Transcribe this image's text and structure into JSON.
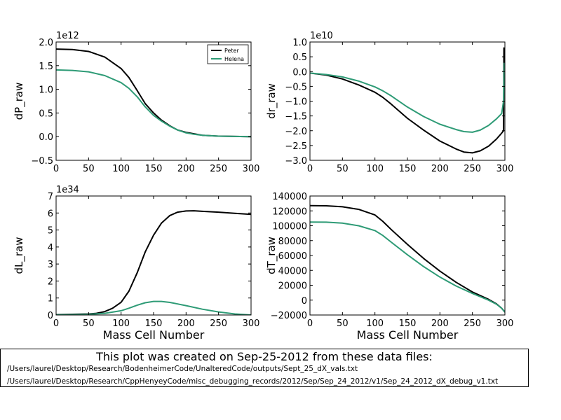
{
  "chart_data": [
    {
      "type": "line",
      "ylabel": "dP_raw",
      "xlabel": "",
      "exponent_label": "1e12",
      "xlim": [
        0,
        300
      ],
      "ylim": [
        -0.5,
        2.0
      ],
      "xticks": [
        0,
        50,
        100,
        150,
        200,
        250,
        300
      ],
      "xtick_labels": [
        "0",
        "50",
        "100",
        "150",
        "200",
        "250",
        "300"
      ],
      "yticks": [
        -0.5,
        0.0,
        0.5,
        1.0,
        1.5,
        2.0
      ],
      "ytick_labels": [
        "−0.5",
        "0.0",
        "0.5",
        "1.0",
        "1.5",
        "2.0"
      ],
      "legend": {
        "placement": "top-right",
        "entries": [
          "Peter",
          "Helena"
        ]
      },
      "series": [
        {
          "name": "Peter",
          "color": "#000000",
          "x": [
            0,
            25,
            50,
            75,
            100,
            112,
            125,
            137,
            150,
            162,
            175,
            187,
            200,
            212,
            225,
            250,
            275,
            300
          ],
          "y": [
            1.85,
            1.84,
            1.8,
            1.68,
            1.44,
            1.25,
            0.97,
            0.7,
            0.5,
            0.35,
            0.23,
            0.14,
            0.09,
            0.06,
            0.03,
            0.01,
            0.005,
            0.0
          ]
        },
        {
          "name": "Helena",
          "color": "#2e9b76",
          "x": [
            0,
            25,
            50,
            75,
            100,
            112,
            125,
            137,
            150,
            162,
            175,
            187,
            200,
            212,
            225,
            250,
            275,
            300
          ],
          "y": [
            1.41,
            1.4,
            1.37,
            1.29,
            1.14,
            1.02,
            0.84,
            0.63,
            0.45,
            0.33,
            0.22,
            0.14,
            0.08,
            0.05,
            0.03,
            0.01,
            0.004,
            0.0
          ]
        }
      ]
    },
    {
      "type": "line",
      "ylabel": "dr_raw",
      "xlabel": "",
      "exponent_label": "1e10",
      "xlim": [
        0,
        300
      ],
      "ylim": [
        -3.0,
        1.0
      ],
      "xticks": [
        0,
        50,
        100,
        150,
        200,
        250,
        300
      ],
      "xtick_labels": [
        "0",
        "50",
        "100",
        "150",
        "200",
        "250",
        "300"
      ],
      "yticks": [
        -3.0,
        -2.5,
        -2.0,
        -1.5,
        -1.0,
        -0.5,
        0.0,
        0.5,
        1.0
      ],
      "ytick_labels": [
        "−3.0",
        "−2.5",
        "−2.0",
        "−1.5",
        "−1.0",
        "−0.5",
        "0.0",
        "0.5",
        "1.0"
      ],
      "series": [
        {
          "name": "Peter",
          "color": "#000000",
          "x": [
            0,
            25,
            50,
            75,
            100,
            112,
            125,
            150,
            175,
            200,
            225,
            237,
            250,
            262,
            275,
            287,
            295,
            298,
            298.5,
            299
          ],
          "y": [
            -0.05,
            -0.12,
            -0.25,
            -0.45,
            -0.7,
            -0.87,
            -1.1,
            -1.58,
            -1.98,
            -2.35,
            -2.62,
            -2.72,
            -2.75,
            -2.68,
            -2.52,
            -2.28,
            -2.08,
            -2.0,
            0.8,
            0.5
          ]
        },
        {
          "name": "Helena",
          "color": "#2e9b76",
          "x": [
            0,
            25,
            50,
            75,
            100,
            112,
            125,
            150,
            175,
            200,
            225,
            237,
            250,
            262,
            275,
            287,
            295,
            298,
            299
          ],
          "y": [
            -0.05,
            -0.1,
            -0.18,
            -0.32,
            -0.52,
            -0.65,
            -0.82,
            -1.2,
            -1.52,
            -1.78,
            -1.96,
            -2.03,
            -2.05,
            -1.98,
            -1.82,
            -1.6,
            -1.42,
            -1.0,
            0.3
          ]
        }
      ]
    },
    {
      "type": "line",
      "ylabel": "dL_raw",
      "xlabel": "Mass Cell Number",
      "exponent_label": "1e34",
      "xlim": [
        0,
        300
      ],
      "ylim": [
        0,
        7
      ],
      "xticks": [
        0,
        50,
        100,
        150,
        200,
        250,
        300
      ],
      "xtick_labels": [
        "0",
        "50",
        "100",
        "150",
        "200",
        "250",
        "300"
      ],
      "yticks": [
        0,
        1,
        2,
        3,
        4,
        5,
        6,
        7
      ],
      "ytick_labels": [
        "0",
        "1",
        "2",
        "3",
        "4",
        "5",
        "6",
        "7"
      ],
      "series": [
        {
          "name": "Peter",
          "color": "#000000",
          "x": [
            0,
            25,
            50,
            62,
            75,
            87,
            100,
            112,
            125,
            137,
            150,
            162,
            175,
            187,
            200,
            212,
            225,
            250,
            275,
            300
          ],
          "y": [
            0.02,
            0.04,
            0.06,
            0.1,
            0.2,
            0.4,
            0.75,
            1.4,
            2.5,
            3.7,
            4.7,
            5.4,
            5.85,
            6.05,
            6.12,
            6.13,
            6.1,
            6.05,
            5.98,
            5.92
          ]
        },
        {
          "name": "Helena",
          "color": "#2e9b76",
          "x": [
            0,
            25,
            50,
            75,
            100,
            112,
            125,
            137,
            150,
            162,
            175,
            187,
            200,
            225,
            250,
            275,
            300
          ],
          "y": [
            0.01,
            0.02,
            0.04,
            0.1,
            0.25,
            0.4,
            0.58,
            0.72,
            0.8,
            0.8,
            0.74,
            0.65,
            0.55,
            0.34,
            0.18,
            0.06,
            0.0
          ]
        }
      ]
    },
    {
      "type": "line",
      "ylabel": "dT_raw",
      "xlabel": "Mass Cell Number",
      "exponent_label": "",
      "xlim": [
        0,
        300
      ],
      "ylim": [
        -20000,
        140000
      ],
      "xticks": [
        0,
        50,
        100,
        150,
        200,
        250,
        300
      ],
      "xtick_labels": [
        "0",
        "50",
        "100",
        "150",
        "200",
        "250",
        "300"
      ],
      "yticks": [
        -20000,
        0,
        20000,
        40000,
        60000,
        80000,
        100000,
        120000,
        140000
      ],
      "ytick_labels": [
        "−20000",
        "0",
        "20000",
        "40000",
        "60000",
        "80000",
        "100000",
        "120000",
        "140000"
      ],
      "series": [
        {
          "name": "Peter",
          "color": "#000000",
          "x": [
            0,
            25,
            50,
            75,
            100,
            112,
            125,
            150,
            175,
            200,
            225,
            250,
            275,
            287,
            295,
            300
          ],
          "y": [
            127000,
            126800,
            125500,
            122000,
            114500,
            106000,
            95000,
            75000,
            56000,
            39000,
            24000,
            11000,
            1000,
            -5000,
            -11000,
            -16000
          ]
        },
        {
          "name": "Helena",
          "color": "#2e9b76",
          "x": [
            0,
            25,
            50,
            75,
            100,
            112,
            125,
            150,
            175,
            200,
            225,
            250,
            275,
            287,
            295,
            300
          ],
          "y": [
            105000,
            104800,
            103500,
            100000,
            93500,
            87000,
            78000,
            61000,
            45000,
            31000,
            19000,
            9000,
            0,
            -5500,
            -11000,
            -16000
          ]
        }
      ]
    }
  ],
  "caption": {
    "title": "This plot was created on Sep-25-2012 from these data files:",
    "files": [
      "/Users/laurel/Desktop/Research/BodenheimerCode/UnalteredCode/outputs/Sept_25_dX_vals.txt",
      "/Users/laurel/Desktop/Research/CppHenyeyCode/misc_debugging_records/2012/Sep/Sep_24_2012/v1/Sep_24_2012_dX_debug_v1.txt"
    ]
  }
}
